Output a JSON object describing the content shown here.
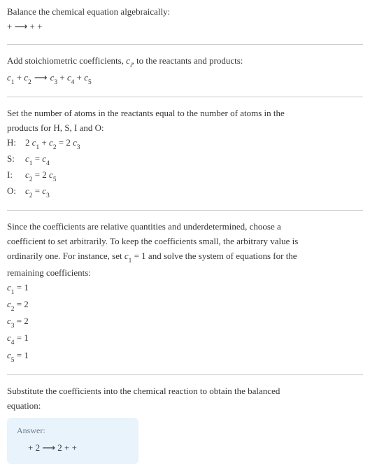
{
  "intro": {
    "line1": "Balance the chemical equation algebraically:",
    "line2_prefix": " + ",
    "line2_arrow": "⟶",
    "line2_suffix": " + + "
  },
  "section_add": {
    "text": "Add stoichiometric coefficients, ",
    "ci": "c",
    "ci_sub": "i",
    "text2": ", to the reactants and products:",
    "eq": {
      "c1": "c",
      "s1": "1",
      "plus1": " + ",
      "c2": "c",
      "s2": "2",
      "arrow": " ⟶ ",
      "c3": "c",
      "s3": "3",
      "plus2": " + ",
      "c4": "c",
      "s4": "4",
      "plus3": " + ",
      "c5": "c",
      "s5": "5"
    }
  },
  "section_set": {
    "line1": "Set the number of atoms in the reactants equal to the number of atoms in the",
    "line2": "products for H, S, I and O:",
    "rows": [
      {
        "label": "H:",
        "lhs_coef": "2 ",
        "lhs_c": "c",
        "lhs_s": "1",
        "mid": " + ",
        "mid_c": "c",
        "mid_s": "2",
        "eq": " = ",
        "rhs_coef": "2 ",
        "rhs_c": "c",
        "rhs_s": "3"
      },
      {
        "label": "S:",
        "lhs_c": "c",
        "lhs_s": "1",
        "eq": " = ",
        "rhs_c": "c",
        "rhs_s": "4"
      },
      {
        "label": "I:",
        "lhs_c": "c",
        "lhs_s": "2",
        "eq": " = ",
        "rhs_coef": "2 ",
        "rhs_c": "c",
        "rhs_s": "5"
      },
      {
        "label": "O:",
        "lhs_c": "c",
        "lhs_s": "2",
        "eq": " = ",
        "rhs_c": "c",
        "rhs_s": "3"
      }
    ]
  },
  "section_choose": {
    "p1": "Since the coefficients are relative quantities and underdetermined, choose a",
    "p2": "coefficient to set arbitrarily. To keep the coefficients small, the arbitrary value is",
    "p3a": "ordinarily one. For instance, set ",
    "p3_c": "c",
    "p3_s": "1",
    "p3b": " = 1 and solve the system of equations for the",
    "p4": "remaining coefficients:",
    "vals": [
      {
        "c": "c",
        "s": "1",
        "eq": " = 1"
      },
      {
        "c": "c",
        "s": "2",
        "eq": " = 2"
      },
      {
        "c": "c",
        "s": "3",
        "eq": " = 2"
      },
      {
        "c": "c",
        "s": "4",
        "eq": " = 1"
      },
      {
        "c": "c",
        "s": "5",
        "eq": " = 1"
      }
    ]
  },
  "section_sub": {
    "p1": "Substitute the coefficients into the chemical reaction to obtain the balanced",
    "p2": "equation:"
  },
  "answer": {
    "title": "Answer:",
    "eq_prefix": " + 2 ",
    "arrow": "⟶",
    "eq_suffix": " 2  +  + "
  },
  "colors": {
    "text": "#333333",
    "separator": "#cccccc",
    "answer_bg": "#e9f3fb",
    "answer_title": "#6a7a88"
  }
}
